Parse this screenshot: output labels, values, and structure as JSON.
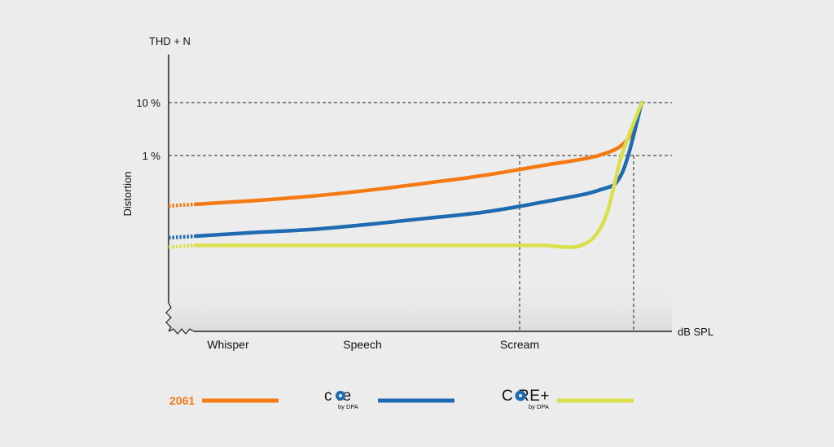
{
  "chart_data": {
    "type": "line",
    "ylabel_top": "THD + N",
    "ylabel": "Distortion",
    "xlabel": "dB SPL",
    "y_ticks": [
      {
        "label": "10 %",
        "value": 10
      },
      {
        "label": "1 %",
        "value": 1
      }
    ],
    "x_categories": [
      "Whisper",
      "Speech",
      "Scream"
    ],
    "ylim": [
      0,
      10
    ],
    "series": [
      {
        "name": "2061",
        "color": "#f47a14",
        "x": [
          0,
          10,
          20,
          30,
          40,
          50,
          60,
          70,
          75,
          77.5
        ],
        "y": [
          0.12,
          0.14,
          0.17,
          0.22,
          0.3,
          0.42,
          0.64,
          1.0,
          2.0,
          10
        ]
      },
      {
        "name": "core by DPA",
        "color": "#1f6bb1",
        "x": [
          0,
          10,
          20,
          30,
          40,
          50,
          60,
          70,
          74,
          77.5
        ],
        "y": [
          0.03,
          0.035,
          0.04,
          0.05,
          0.065,
          0.085,
          0.13,
          0.22,
          0.45,
          10
        ]
      },
      {
        "name": "CORE+ by DPA",
        "color": "#d9e04a",
        "x": [
          0,
          10,
          20,
          30,
          40,
          50,
          60,
          67,
          71,
          74,
          77.5
        ],
        "y": [
          0.02,
          0.02,
          0.02,
          0.02,
          0.02,
          0.02,
          0.02,
          0.02,
          0.06,
          1.0,
          10
        ]
      }
    ],
    "legend": [
      {
        "label": "2061",
        "color": "#f47a14"
      },
      {
        "logo_main": "c re",
        "logo_sub": "by DPA",
        "color": "#1f6bb1"
      },
      {
        "logo_main": "C RE+",
        "logo_sub": "by DPA",
        "color": "#d9e04a"
      }
    ],
    "grid": false,
    "colors": {
      "background": "#ececec",
      "axis": "#222222",
      "guide": "#222222",
      "plot_shade": "#e4e4e4"
    }
  }
}
